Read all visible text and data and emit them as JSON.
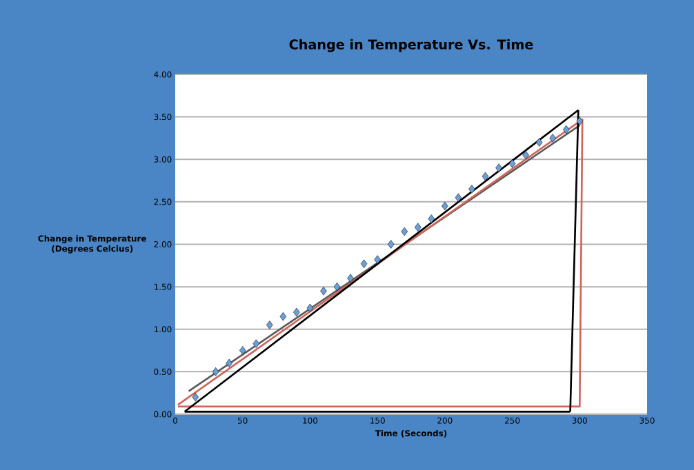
{
  "chart_data": {
    "type": "scatter",
    "title": "Change in Temperature Vs. Time",
    "xlabel": "Time (Seconds)",
    "ylabel": "Change in Temperature (Degrees Celcius)",
    "xlim": [
      0,
      350
    ],
    "xticks": [
      0,
      50,
      100,
      150,
      200,
      250,
      300,
      350
    ],
    "ylim": [
      0,
      4
    ],
    "yticks": [
      {
        "value": 0,
        "label": "0.00"
      },
      {
        "value": 0.5,
        "label": "0.50"
      },
      {
        "value": 1,
        "label": "1.00"
      },
      {
        "value": 1.5,
        "label": "1.50"
      },
      {
        "value": 2,
        "label": "2.00"
      },
      {
        "value": 2.5,
        "label": "2.50"
      },
      {
        "value": 3,
        "label": "3.00"
      },
      {
        "value": 3.5,
        "label": "3.50"
      },
      {
        "value": 4,
        "label": "4.00"
      }
    ],
    "grid": "y",
    "series": [
      {
        "marker": "diamond",
        "color": "#6a9fd8",
        "x": [
          15,
          30,
          40,
          50,
          60,
          70,
          80,
          90,
          100,
          110,
          120,
          130,
          140,
          150,
          160,
          170,
          180,
          190,
          200,
          210,
          220,
          230,
          240,
          250,
          260,
          270,
          280,
          290,
          300
        ],
        "values": [
          0.2,
          0.5,
          0.6,
          0.75,
          0.83,
          1.05,
          1.15,
          1.2,
          1.25,
          1.45,
          1.5,
          1.6,
          1.77,
          1.82,
          2.0,
          2.15,
          2.2,
          2.3,
          2.45,
          2.55,
          2.65,
          2.8,
          2.9,
          2.95,
          3.05,
          3.2,
          3.25,
          3.35,
          3.45
        ]
      },
      {
        "type": "line",
        "color": "#5a5a5a",
        "x": [
          10,
          300
        ],
        "values": [
          0.27,
          3.4
        ]
      },
      {
        "type": "line",
        "color": "#d0665a",
        "x": [
          2,
          302,
          300,
          2
        ],
        "values": [
          0.11,
          3.47,
          0.09,
          0.09
        ]
      },
      {
        "type": "line",
        "color": "#000000",
        "x": [
          7,
          299
        ],
        "values": [
          0.03,
          3.58
        ]
      },
      {
        "type": "line",
        "color": "#000000",
        "x": [
          293,
          299
        ],
        "values": [
          0.03,
          3.58
        ]
      },
      {
        "type": "line",
        "color": "#000000",
        "x": [
          7,
          293
        ],
        "values": [
          0.03,
          0.03
        ]
      }
    ]
  }
}
